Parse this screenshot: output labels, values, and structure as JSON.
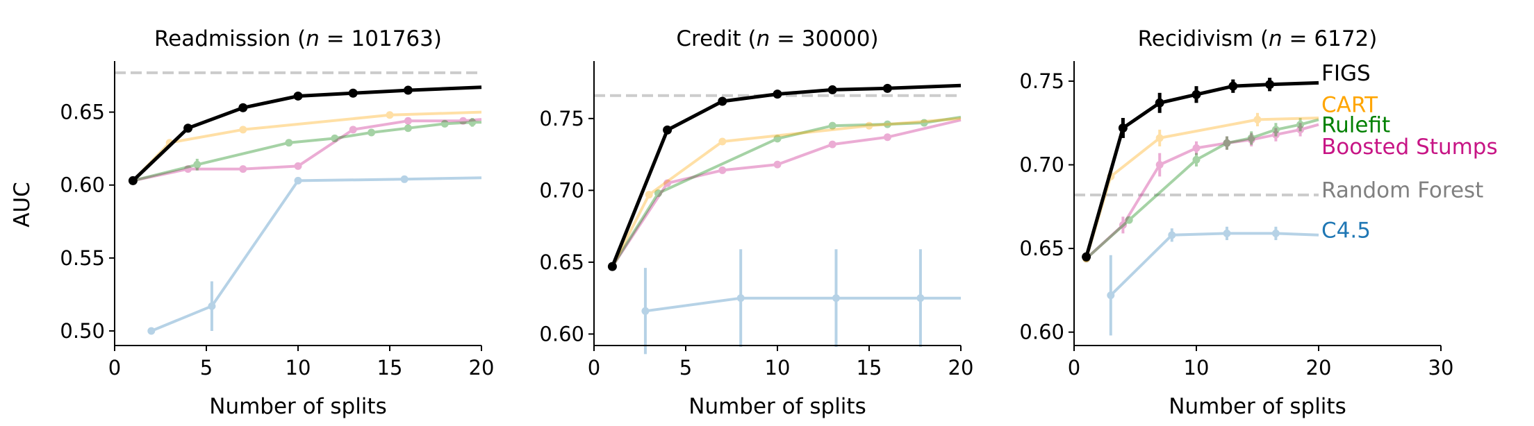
{
  "figure": {
    "ylabel": "AUC",
    "colors": {
      "FIGS": "#000000",
      "CART": "#ffa500",
      "Rulefit": "#008000",
      "Boosted Stumps": "#c71585",
      "C4.5": "#1f77b4",
      "Random Forest": "#808080",
      "rf_line": "#cccccc"
    }
  },
  "chart_data": [
    {
      "type": "line",
      "title": "Readmission (n = 101763)",
      "title_prefix": "Readmission (",
      "title_n": "n",
      "title_suffix": " = 101763)",
      "xlabel": "Number of splits",
      "ylabel": "AUC",
      "xlim": [
        0,
        20
      ],
      "ylim": [
        0.49,
        0.685
      ],
      "xticks": [
        0,
        5,
        10,
        15,
        20
      ],
      "yticks": [
        0.5,
        0.55,
        0.6,
        0.65
      ],
      "ytick_labels": [
        "0.50",
        "0.55",
        "0.60",
        "0.65"
      ],
      "reference_line": {
        "name": "Random Forest",
        "y": 0.677
      },
      "series": [
        {
          "name": "C4.5",
          "x": [
            2,
            5.3,
            10,
            15.8,
            20
          ],
          "y": [
            0.5,
            0.517,
            0.603,
            0.604,
            0.605
          ],
          "err": [
            0,
            0.017,
            0,
            0,
            0
          ],
          "markers": [
            true,
            true,
            true,
            true,
            false
          ]
        },
        {
          "name": "Boosted Stumps",
          "x": [
            1,
            4,
            7,
            10,
            13,
            16,
            19,
            20
          ],
          "y": [
            0.603,
            0.611,
            0.611,
            0.613,
            0.638,
            0.644,
            0.644,
            0.645
          ],
          "err": [
            0,
            0,
            0,
            0,
            0,
            0,
            0,
            0
          ],
          "markers": [
            true,
            true,
            true,
            true,
            true,
            true,
            true,
            false
          ]
        },
        {
          "name": "Rulefit",
          "x": [
            1,
            4.5,
            9.5,
            12,
            14,
            16,
            18,
            19.5,
            20
          ],
          "y": [
            0.603,
            0.614,
            0.629,
            0.632,
            0.636,
            0.639,
            0.642,
            0.643,
            0.643
          ],
          "err": [
            0,
            0.004,
            0,
            0,
            0,
            0,
            0,
            0.003,
            0
          ],
          "markers": [
            true,
            true,
            true,
            true,
            true,
            true,
            true,
            true,
            false
          ]
        },
        {
          "name": "CART",
          "x": [
            1,
            3,
            7,
            15,
            20
          ],
          "y": [
            0.603,
            0.629,
            0.638,
            0.648,
            0.65
          ],
          "err": [
            0,
            0,
            0,
            0,
            0
          ],
          "markers": [
            true,
            true,
            true,
            true,
            false
          ]
        },
        {
          "name": "FIGS",
          "x": [
            1,
            4,
            7,
            10,
            13,
            16,
            20
          ],
          "y": [
            0.603,
            0.639,
            0.653,
            0.661,
            0.663,
            0.665,
            0.667
          ],
          "err": [
            0,
            0,
            0,
            0,
            0,
            0,
            0
          ],
          "markers": [
            true,
            true,
            true,
            true,
            true,
            true,
            false
          ]
        }
      ]
    },
    {
      "type": "line",
      "title": "Credit (n = 30000)",
      "title_prefix": "Credit (",
      "title_n": "n",
      "title_suffix": " = 30000)",
      "xlabel": "Number of splits",
      "xlim": [
        0,
        20
      ],
      "ylim": [
        0.592,
        0.79
      ],
      "xticks": [
        0,
        5,
        10,
        15,
        20
      ],
      "yticks": [
        0.6,
        0.65,
        0.7,
        0.75
      ],
      "ytick_labels": [
        "0.60",
        "0.65",
        "0.70",
        "0.75"
      ],
      "reference_line": {
        "name": "Random Forest",
        "y": 0.766
      },
      "series": [
        {
          "name": "C4.5",
          "x": [
            2.8,
            8,
            13.2,
            17.8,
            20
          ],
          "y": [
            0.616,
            0.625,
            0.625,
            0.625,
            0.625
          ],
          "err": [
            0.03,
            0.034,
            0.034,
            0.034,
            0
          ],
          "markers": [
            true,
            true,
            true,
            true,
            false
          ]
        },
        {
          "name": "Boosted Stumps",
          "x": [
            1,
            4,
            7,
            10,
            13,
            16,
            20
          ],
          "y": [
            0.647,
            0.705,
            0.714,
            0.718,
            0.732,
            0.737,
            0.749
          ],
          "err": [
            0,
            0,
            0,
            0,
            0,
            0,
            0
          ],
          "markers": [
            true,
            true,
            true,
            true,
            true,
            true,
            false
          ]
        },
        {
          "name": "Rulefit",
          "x": [
            1,
            3.5,
            10,
            13,
            16,
            18,
            20
          ],
          "y": [
            0.647,
            0.698,
            0.736,
            0.745,
            0.746,
            0.747,
            0.751
          ],
          "err": [
            0,
            0,
            0,
            0,
            0,
            0,
            0
          ],
          "markers": [
            true,
            true,
            true,
            true,
            true,
            true,
            false
          ]
        },
        {
          "name": "CART",
          "x": [
            1,
            3,
            7,
            15,
            20
          ],
          "y": [
            0.647,
            0.697,
            0.734,
            0.745,
            0.75
          ],
          "err": [
            0,
            0,
            0,
            0,
            0
          ],
          "markers": [
            true,
            true,
            true,
            true,
            false
          ]
        },
        {
          "name": "FIGS",
          "x": [
            1,
            4,
            7,
            10,
            13,
            16,
            20
          ],
          "y": [
            0.647,
            0.742,
            0.762,
            0.767,
            0.77,
            0.771,
            0.773
          ],
          "err": [
            0,
            0,
            0,
            0,
            0,
            0,
            0
          ],
          "markers": [
            true,
            true,
            true,
            true,
            true,
            true,
            false
          ]
        }
      ]
    },
    {
      "type": "line",
      "title": "Recidivism (n = 6172)",
      "title_prefix": "Recidivism (",
      "title_n": "n",
      "title_suffix": " = 6172)",
      "xlabel": "Number of splits",
      "xlim": [
        0,
        30
      ],
      "ylim": [
        0.592,
        0.762
      ],
      "xticks": [
        0,
        10,
        20,
        30
      ],
      "yticks": [
        0.6,
        0.65,
        0.7,
        0.75
      ],
      "ytick_labels": [
        "0.60",
        "0.65",
        "0.70",
        "0.75"
      ],
      "reference_line": {
        "name": "Random Forest",
        "y": 0.682,
        "x_end": 20
      },
      "series": [
        {
          "name": "C4.5",
          "x": [
            3,
            8,
            12.5,
            16.5,
            20
          ],
          "y": [
            0.622,
            0.658,
            0.659,
            0.659,
            0.658
          ],
          "err": [
            0.024,
            0.004,
            0.004,
            0.004,
            0
          ],
          "markers": [
            true,
            true,
            true,
            true,
            false
          ]
        },
        {
          "name": "Boosted Stumps",
          "x": [
            1,
            4,
            7,
            10,
            12.5,
            14.5,
            16.5,
            18.5,
            20
          ],
          "y": [
            0.644,
            0.664,
            0.7,
            0.71,
            0.713,
            0.715,
            0.718,
            0.721,
            0.724
          ],
          "err": [
            0,
            0.005,
            0.007,
            0.004,
            0.004,
            0.004,
            0.004,
            0.004,
            0
          ],
          "markers": [
            true,
            true,
            true,
            true,
            true,
            true,
            true,
            true,
            false
          ]
        },
        {
          "name": "Rulefit",
          "x": [
            1,
            4.5,
            10,
            12.5,
            14.5,
            16.5,
            18.5,
            20
          ],
          "y": [
            0.644,
            0.667,
            0.703,
            0.713,
            0.716,
            0.721,
            0.724,
            0.727
          ],
          "err": [
            0,
            0,
            0.004,
            0.004,
            0.004,
            0.004,
            0.004,
            0
          ],
          "markers": [
            true,
            true,
            true,
            true,
            true,
            true,
            true,
            false
          ]
        },
        {
          "name": "CART",
          "x": [
            1,
            3,
            7,
            15,
            20
          ],
          "y": [
            0.644,
            0.693,
            0.716,
            0.727,
            0.728
          ],
          "err": [
            0,
            0,
            0.005,
            0.004,
            0
          ],
          "markers": [
            true,
            true,
            true,
            true,
            false
          ]
        },
        {
          "name": "FIGS",
          "x": [
            1,
            4,
            7,
            10,
            13,
            16,
            20
          ],
          "y": [
            0.645,
            0.722,
            0.737,
            0.742,
            0.747,
            0.748,
            0.749
          ],
          "err": [
            0,
            0.006,
            0.006,
            0.005,
            0.004,
            0.004,
            0
          ],
          "markers": [
            true,
            true,
            true,
            true,
            true,
            true,
            false
          ]
        }
      ],
      "legend": [
        {
          "name": "FIGS",
          "y": 0.755
        },
        {
          "name": "CART",
          "y": 0.736
        },
        {
          "name": "Rulefit",
          "y": 0.724
        },
        {
          "name": "Boosted Stumps",
          "y": 0.711
        },
        {
          "name": "Random Forest",
          "y": 0.685
        },
        {
          "name": "C4.5",
          "y": 0.661
        }
      ]
    }
  ]
}
